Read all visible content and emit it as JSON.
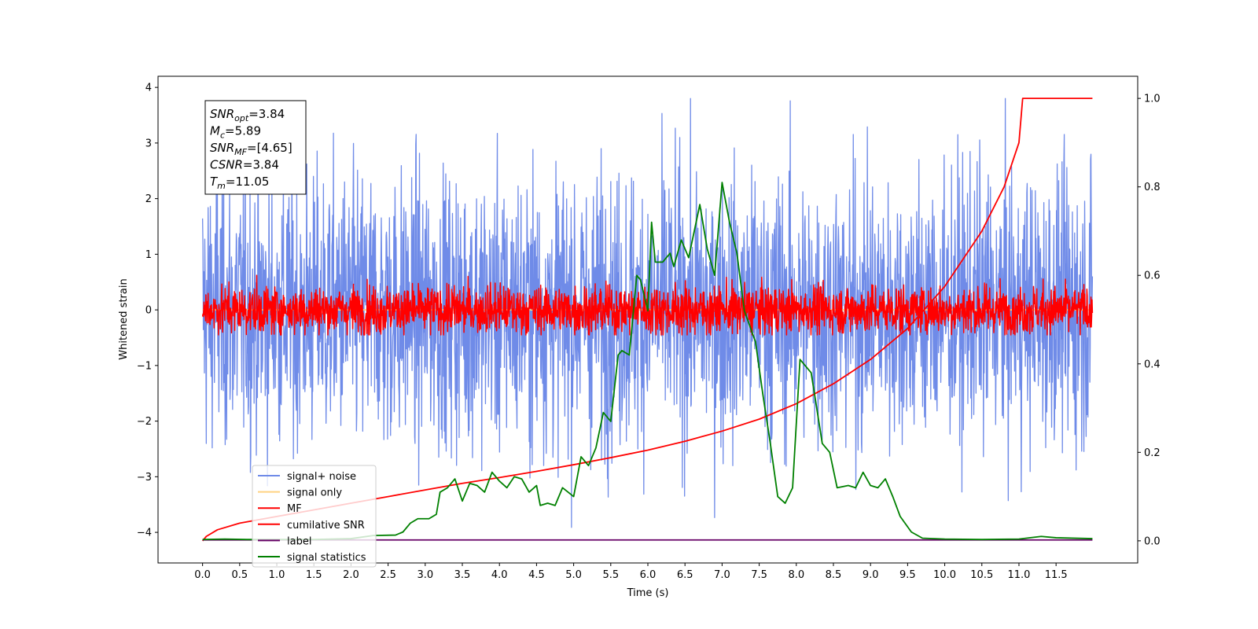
{
  "chart_data": {
    "type": "line",
    "xlabel": "Time (s)",
    "ylabel_left": "Whitened strain",
    "ylabel_right": "",
    "xlim": [
      -0.6,
      12.6
    ],
    "ylim_left": [
      -4.55,
      4.2
    ],
    "ylim_right": [
      -0.05,
      1.05
    ],
    "x_ticks": [
      0.0,
      0.5,
      1.0,
      1.5,
      2.0,
      2.5,
      3.0,
      3.5,
      4.0,
      4.5,
      5.0,
      5.5,
      6.0,
      6.5,
      7.0,
      7.5,
      8.0,
      8.5,
      9.0,
      9.5,
      10.0,
      10.5,
      11.0,
      11.5
    ],
    "x_tick_labels": [
      "0.0",
      "0.5",
      "1.0",
      "1.5",
      "2.0",
      "2.5",
      "3.0",
      "3.5",
      "4.0",
      "4.5",
      "5.0",
      "5.5",
      "6.0",
      "6.5",
      "7.0",
      "7.5",
      "8.0",
      "8.5",
      "9.0",
      "9.5",
      "10.0",
      "10.5",
      "11.0",
      "11.5"
    ],
    "y_ticks_left": [
      -4,
      -3,
      -2,
      -1,
      0,
      1,
      2,
      3,
      4
    ],
    "y_tick_labels_left": [
      "−4",
      "−3",
      "−2",
      "−1",
      "0",
      "1",
      "2",
      "3",
      "4"
    ],
    "y_ticks_right": [
      0.0,
      0.2,
      0.4,
      0.6,
      0.8,
      1.0
    ],
    "y_tick_labels_right": [
      "0.0",
      "0.2",
      "0.4",
      "0.6",
      "0.8",
      "1.0"
    ],
    "grid": false,
    "legend_position": "lower-left",
    "annotation": [
      {
        "base": "SNR",
        "sub": "opt",
        "rest": "=3.84"
      },
      {
        "base": "M",
        "sub": "c",
        "rest": "=5.89"
      },
      {
        "base": "SNR",
        "sub": "MF",
        "rest": "=[4.65]"
      },
      {
        "base": "CSNR",
        "sub": "",
        "rest": "=3.84"
      },
      {
        "base": "T",
        "sub": "m",
        "rest": "=11.05"
      }
    ],
    "series": [
      {
        "name": "signal+ noise",
        "axis": "left",
        "color": "#6f8be8",
        "kind": "noise",
        "x_range": [
          0.0,
          11.99
        ],
        "mean": 0.0,
        "approx_range": [
          -4.1,
          3.8
        ]
      },
      {
        "name": "signal only",
        "axis": "left",
        "color": "#ffd280",
        "kind": "flat",
        "x_range": [
          0.0,
          11.99
        ],
        "value": 0.0
      },
      {
        "name": "MF",
        "axis": "left",
        "color": "#ff0000",
        "kind": "noise",
        "x_range": [
          0.0,
          11.99
        ],
        "mean": 0.0,
        "approx_range": [
          -0.45,
          0.95
        ]
      },
      {
        "name": "cumilative SNR",
        "axis": "right",
        "color": "#ff0000",
        "kind": "curve",
        "points": [
          [
            0.0,
            0.0
          ],
          [
            0.05,
            0.01
          ],
          [
            0.2,
            0.025
          ],
          [
            0.5,
            0.04
          ],
          [
            1.0,
            0.055
          ],
          [
            1.5,
            0.07
          ],
          [
            2.0,
            0.085
          ],
          [
            2.5,
            0.1
          ],
          [
            3.0,
            0.115
          ],
          [
            3.5,
            0.13
          ],
          [
            4.0,
            0.143
          ],
          [
            4.5,
            0.157
          ],
          [
            5.0,
            0.172
          ],
          [
            5.5,
            0.188
          ],
          [
            6.0,
            0.205
          ],
          [
            6.5,
            0.225
          ],
          [
            7.0,
            0.248
          ],
          [
            7.5,
            0.275
          ],
          [
            8.0,
            0.31
          ],
          [
            8.5,
            0.355
          ],
          [
            9.0,
            0.41
          ],
          [
            9.5,
            0.48
          ],
          [
            10.0,
            0.575
          ],
          [
            10.5,
            0.7
          ],
          [
            10.8,
            0.8
          ],
          [
            11.0,
            0.9
          ],
          [
            11.05,
            1.0
          ],
          [
            11.99,
            1.0
          ]
        ]
      },
      {
        "name": "label",
        "axis": "right",
        "color": "#660066",
        "kind": "curve",
        "points": [
          [
            0.0,
            0.002
          ],
          [
            11.99,
            0.002
          ]
        ]
      },
      {
        "name": "signal statistics",
        "axis": "right",
        "color": "#008000",
        "kind": "curve",
        "points": [
          [
            0.0,
            0.003
          ],
          [
            0.3,
            0.004
          ],
          [
            0.6,
            0.003
          ],
          [
            1.0,
            0.003
          ],
          [
            1.5,
            0.003
          ],
          [
            2.0,
            0.005
          ],
          [
            2.3,
            0.012
          ],
          [
            2.6,
            0.013
          ],
          [
            2.7,
            0.02
          ],
          [
            2.8,
            0.04
          ],
          [
            2.9,
            0.05
          ],
          [
            3.05,
            0.05
          ],
          [
            3.15,
            0.06
          ],
          [
            3.2,
            0.11
          ],
          [
            3.3,
            0.12
          ],
          [
            3.4,
            0.14
          ],
          [
            3.5,
            0.09
          ],
          [
            3.6,
            0.13
          ],
          [
            3.7,
            0.125
          ],
          [
            3.8,
            0.11
          ],
          [
            3.9,
            0.155
          ],
          [
            4.0,
            0.135
          ],
          [
            4.1,
            0.12
          ],
          [
            4.2,
            0.145
          ],
          [
            4.3,
            0.14
          ],
          [
            4.4,
            0.11
          ],
          [
            4.5,
            0.125
          ],
          [
            4.55,
            0.08
          ],
          [
            4.65,
            0.085
          ],
          [
            4.75,
            0.08
          ],
          [
            4.85,
            0.12
          ],
          [
            5.0,
            0.1
          ],
          [
            5.1,
            0.19
          ],
          [
            5.2,
            0.17
          ],
          [
            5.3,
            0.21
          ],
          [
            5.4,
            0.29
          ],
          [
            5.5,
            0.27
          ],
          [
            5.6,
            0.42
          ],
          [
            5.65,
            0.43
          ],
          [
            5.75,
            0.42
          ],
          [
            5.85,
            0.6
          ],
          [
            5.9,
            0.59
          ],
          [
            6.0,
            0.52
          ],
          [
            6.05,
            0.72
          ],
          [
            6.1,
            0.63
          ],
          [
            6.2,
            0.63
          ],
          [
            6.3,
            0.65
          ],
          [
            6.35,
            0.62
          ],
          [
            6.45,
            0.68
          ],
          [
            6.55,
            0.64
          ],
          [
            6.7,
            0.76
          ],
          [
            6.8,
            0.66
          ],
          [
            6.9,
            0.6
          ],
          [
            7.0,
            0.81
          ],
          [
            7.1,
            0.72
          ],
          [
            7.2,
            0.65
          ],
          [
            7.3,
            0.52
          ],
          [
            7.45,
            0.45
          ],
          [
            7.55,
            0.33
          ],
          [
            7.65,
            0.22
          ],
          [
            7.75,
            0.1
          ],
          [
            7.85,
            0.085
          ],
          [
            7.95,
            0.12
          ],
          [
            8.05,
            0.41
          ],
          [
            8.2,
            0.38
          ],
          [
            8.35,
            0.22
          ],
          [
            8.45,
            0.2
          ],
          [
            8.55,
            0.12
          ],
          [
            8.7,
            0.125
          ],
          [
            8.8,
            0.12
          ],
          [
            8.9,
            0.155
          ],
          [
            9.0,
            0.125
          ],
          [
            9.1,
            0.12
          ],
          [
            9.2,
            0.14
          ],
          [
            9.3,
            0.1
          ],
          [
            9.4,
            0.055
          ],
          [
            9.55,
            0.02
          ],
          [
            9.7,
            0.006
          ],
          [
            10.0,
            0.004
          ],
          [
            10.5,
            0.003
          ],
          [
            11.0,
            0.004
          ],
          [
            11.3,
            0.01
          ],
          [
            11.5,
            0.007
          ],
          [
            11.99,
            0.005
          ]
        ]
      }
    ]
  }
}
